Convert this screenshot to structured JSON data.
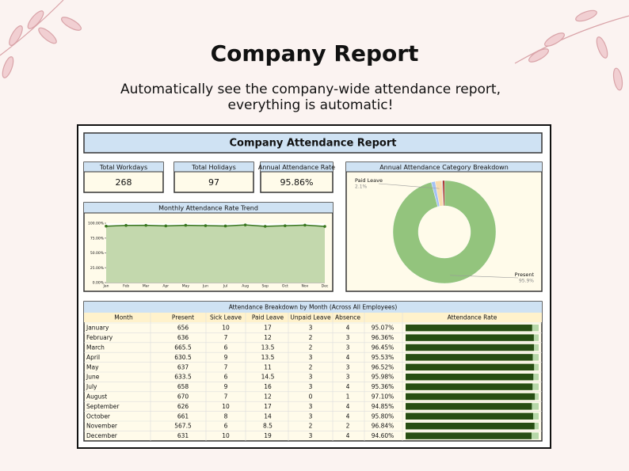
{
  "header": {
    "title": "Company Report",
    "subtitle": [
      "Automatically see the company-wide attendance report,",
      "everything is automatic!"
    ]
  },
  "report": {
    "title": "Company Attendance Report",
    "kpis": [
      {
        "label": "Total Workdays",
        "value": "268"
      },
      {
        "label": "Total Holidays",
        "value": "97"
      },
      {
        "label": "Annual Attendance Rate",
        "value": "95.86%"
      }
    ]
  },
  "chart_data": [
    {
      "type": "line",
      "title": "Monthly Attendance Rate Trend",
      "categories": [
        "Jan",
        "Feb",
        "Mar",
        "Apr",
        "May",
        "Jun",
        "Jul",
        "Aug",
        "Sep",
        "Oct",
        "Nov",
        "Dec"
      ],
      "values": [
        95.07,
        96.36,
        96.45,
        95.53,
        96.52,
        95.98,
        95.36,
        97.1,
        94.85,
        95.8,
        96.84,
        94.6
      ],
      "color": "#38761d",
      "fill": "#c3d8ad",
      "ylim": [
        0,
        100
      ],
      "yticks": [
        {
          "value": 0,
          "label": "0.00%"
        },
        {
          "value": 25,
          "label": "25.00%"
        },
        {
          "value": 50,
          "label": "50.00%"
        },
        {
          "value": 75,
          "label": "75.00%"
        },
        {
          "value": 100,
          "label": "100.00%"
        }
      ]
    },
    {
      "type": "pie",
      "title": "Annual Attendance Category Breakdown",
      "categories": [
        "Present",
        null,
        "Paid Leave",
        null,
        null
      ],
      "values": [
        95.9,
        1.2,
        2.1,
        0.3,
        0.5
      ],
      "value_labels": [
        "95.9%",
        null,
        "2.1%",
        null,
        null
      ],
      "colors": [
        "#93c47d",
        "#a4c2f4",
        "#f9dcae",
        "#b7b7b7",
        "#990000"
      ]
    }
  ],
  "table": {
    "title": "Attendance Breakdown by Month (Across All Employees)",
    "header": [
      "Month",
      "Present",
      "Sick Leave",
      "Paid Leave",
      "Unpaid Leave",
      "Absence",
      "Attendance Rate"
    ],
    "rows": [
      [
        "January",
        "656",
        "10",
        "17",
        "3",
        "4",
        "95.07%"
      ],
      [
        "February",
        "636",
        "7",
        "12",
        "2",
        "3",
        "96.36%"
      ],
      [
        "March",
        "665.5",
        "6",
        "13.5",
        "2",
        "3",
        "96.45%"
      ],
      [
        "April",
        "630.5",
        "9",
        "13.5",
        "3",
        "4",
        "95.53%"
      ],
      [
        "May",
        "637",
        "7",
        "11",
        "2",
        "3",
        "96.52%"
      ],
      [
        "June",
        "633.5",
        "6",
        "14.5",
        "3",
        "3",
        "95.98%"
      ],
      [
        "July",
        "658",
        "9",
        "16",
        "3",
        "4",
        "95.36%"
      ],
      [
        "August",
        "670",
        "7",
        "12",
        "0",
        "1",
        "97.10%"
      ],
      [
        "September",
        "626",
        "10",
        "17",
        "3",
        "4",
        "94.85%"
      ],
      [
        "October",
        "661",
        "8",
        "14",
        "3",
        "4",
        "95.80%"
      ],
      [
        "November",
        "567.5",
        "6",
        "8.5",
        "2",
        "2",
        "96.84%"
      ],
      [
        "December",
        "631",
        "10",
        "19",
        "3",
        "4",
        "94.60%"
      ]
    ]
  }
}
